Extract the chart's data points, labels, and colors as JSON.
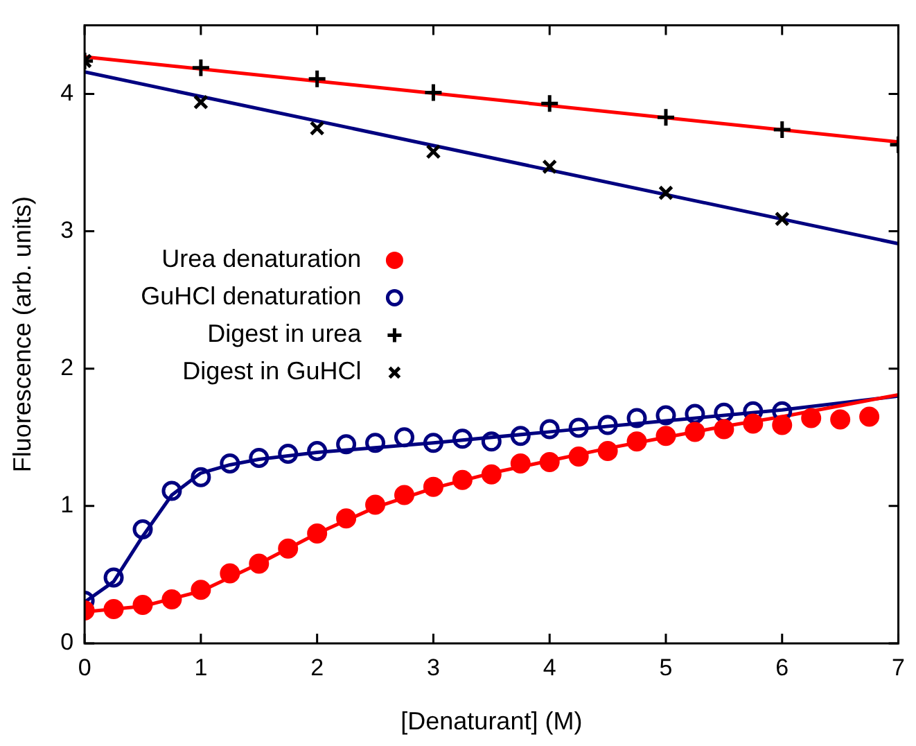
{
  "chart_data": {
    "type": "scatter",
    "xlabel": "[Denaturant] (M)",
    "ylabel": "Fluorescence (arb. units)",
    "xlim": [
      0,
      7
    ],
    "xticks": [
      0,
      1,
      2,
      3,
      4,
      5,
      6,
      7
    ],
    "ylim": [
      0,
      4.5
    ],
    "yticks": [
      0,
      1,
      2,
      3,
      4
    ],
    "grid": false,
    "legend": "left",
    "series": [
      {
        "name": "Urea denaturation",
        "marker": "circle",
        "color": "#ff0000",
        "x": [
          0,
          0.25,
          0.5,
          0.75,
          1,
          1.25,
          1.5,
          1.75,
          2,
          2.25,
          2.5,
          2.75,
          3,
          3.25,
          3.5,
          3.75,
          4,
          4.25,
          4.5,
          4.75,
          5,
          5.25,
          5.5,
          5.75,
          6,
          6.25,
          6.5,
          6.75
        ],
        "values": [
          0.24,
          0.25,
          0.28,
          0.32,
          0.39,
          0.51,
          0.58,
          0.69,
          0.8,
          0.91,
          1.01,
          1.08,
          1.14,
          1.19,
          1.23,
          1.31,
          1.32,
          1.36,
          1.4,
          1.47,
          1.51,
          1.54,
          1.56,
          1.6,
          1.59,
          1.64,
          1.63,
          1.65
        ]
      },
      {
        "name": "GuHCl denaturation",
        "marker": "circle-open",
        "color": "#000080",
        "x": [
          0,
          0.25,
          0.5,
          0.75,
          1,
          1.25,
          1.5,
          1.75,
          2,
          2.25,
          2.5,
          2.75,
          3,
          3.25,
          3.5,
          3.75,
          4,
          4.25,
          4.5,
          4.75,
          5,
          5.25,
          5.5,
          5.75,
          6
        ],
        "values": [
          0.31,
          0.48,
          0.83,
          1.11,
          1.21,
          1.31,
          1.35,
          1.38,
          1.4,
          1.45,
          1.46,
          1.5,
          1.46,
          1.49,
          1.47,
          1.51,
          1.56,
          1.57,
          1.59,
          1.64,
          1.66,
          1.67,
          1.68,
          1.69,
          1.69
        ]
      },
      {
        "name": "Digest in urea",
        "marker": "cross",
        "color": "#000000",
        "x": [
          0,
          1,
          2,
          3,
          4,
          5,
          6,
          7
        ],
        "values": [
          4.24,
          4.19,
          4.11,
          4.01,
          3.93,
          3.83,
          3.74,
          3.63
        ]
      },
      {
        "name": "Digest in GuHCl",
        "marker": "x",
        "color": "#000000",
        "x": [
          0,
          1,
          2,
          3,
          4,
          5,
          6
        ],
        "values": [
          4.24,
          3.94,
          3.75,
          3.58,
          3.47,
          3.28,
          3.09
        ]
      },
      {
        "type": "line",
        "marker": "none",
        "color": "#ff0000",
        "x": [
          0,
          0.5,
          1,
          1.5,
          2,
          2.5,
          3,
          3.5,
          4,
          4.5,
          5,
          5.5,
          6,
          6.5,
          7
        ],
        "values": [
          0.23,
          0.27,
          0.38,
          0.58,
          0.8,
          0.99,
          1.13,
          1.24,
          1.33,
          1.42,
          1.5,
          1.58,
          1.65,
          1.73,
          1.81
        ]
      },
      {
        "type": "line",
        "marker": "none",
        "color": "#000080",
        "x": [
          0,
          0.25,
          0.5,
          0.75,
          1,
          1.25,
          1.5,
          2,
          3,
          4,
          5,
          6,
          7
        ],
        "values": [
          0.3,
          0.45,
          0.78,
          1.08,
          1.24,
          1.3,
          1.34,
          1.39,
          1.46,
          1.54,
          1.62,
          1.7,
          1.8
        ]
      },
      {
        "type": "line",
        "marker": "none",
        "color": "#ff0000",
        "x": [
          0,
          7
        ],
        "values": [
          4.27,
          3.65
        ]
      },
      {
        "type": "line",
        "marker": "none",
        "color": "#000080",
        "x": [
          0,
          7
        ],
        "values": [
          4.16,
          2.91
        ]
      }
    ]
  }
}
